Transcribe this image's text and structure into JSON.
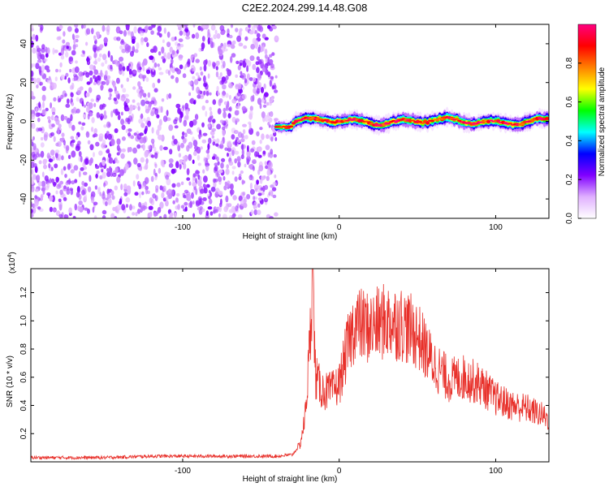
{
  "title": "C2E2.2024.299.14.48.G08",
  "chart_data": [
    {
      "type": "heatmap",
      "xlabel": "Height of straight line (km)",
      "ylabel": "Frequency (Hz)",
      "xlim": [
        -197,
        134
      ],
      "ylim": [
        -50,
        50
      ],
      "xticks": [
        -100,
        0,
        100
      ],
      "yticks": [
        -40,
        -20,
        0,
        20,
        40
      ],
      "noise_region_x": [
        -197,
        -40
      ],
      "signal_region_x": [
        -40,
        134
      ],
      "signal_center_frequency": 0,
      "colorbar": {
        "label": "Normalized spectral amplitude",
        "range": [
          0,
          1
        ],
        "ticks": [
          0.0,
          0.2,
          0.4,
          0.6,
          0.8
        ],
        "colors": [
          "#ffffff",
          "#e0b0ff",
          "#8000ff",
          "#0000ff",
          "#00ffff",
          "#00ff00",
          "#ffff00",
          "#ff8000",
          "#ff0000",
          "#ff0080"
        ]
      }
    },
    {
      "type": "line",
      "xlabel": "Height of straight line (km)",
      "ylabel": "SNR (10 * v/v)",
      "yscale_label": "(x10",
      "yscale_exp": "4",
      "xlim": [
        -197,
        134
      ],
      "ylim": [
        0,
        1.37
      ],
      "xticks": [
        -100,
        0,
        100
      ],
      "yticks": [
        0.2,
        0.4,
        0.6,
        0.8,
        1.0,
        1.2
      ],
      "color": "#e8302a",
      "series": [
        {
          "x": [
            -197,
            -150,
            -120,
            -100,
            -60,
            -40,
            -30,
            -25,
            -22,
            -20,
            -18,
            -17,
            -16,
            -15,
            -13,
            -10,
            -5,
            0,
            5,
            10,
            20,
            30,
            40,
            50,
            60,
            70,
            80,
            90,
            100,
            110,
            120,
            130,
            134
          ],
          "y": [
            0.03,
            0.03,
            0.04,
            0.04,
            0.04,
            0.04,
            0.05,
            0.12,
            0.3,
            0.6,
            1.0,
            1.37,
            0.9,
            0.6,
            0.55,
            0.5,
            0.5,
            0.55,
            0.8,
            0.98,
            0.95,
            1.0,
            0.98,
            0.9,
            0.7,
            0.58,
            0.6,
            0.55,
            0.45,
            0.4,
            0.38,
            0.33,
            0.3
          ]
        }
      ]
    }
  ]
}
